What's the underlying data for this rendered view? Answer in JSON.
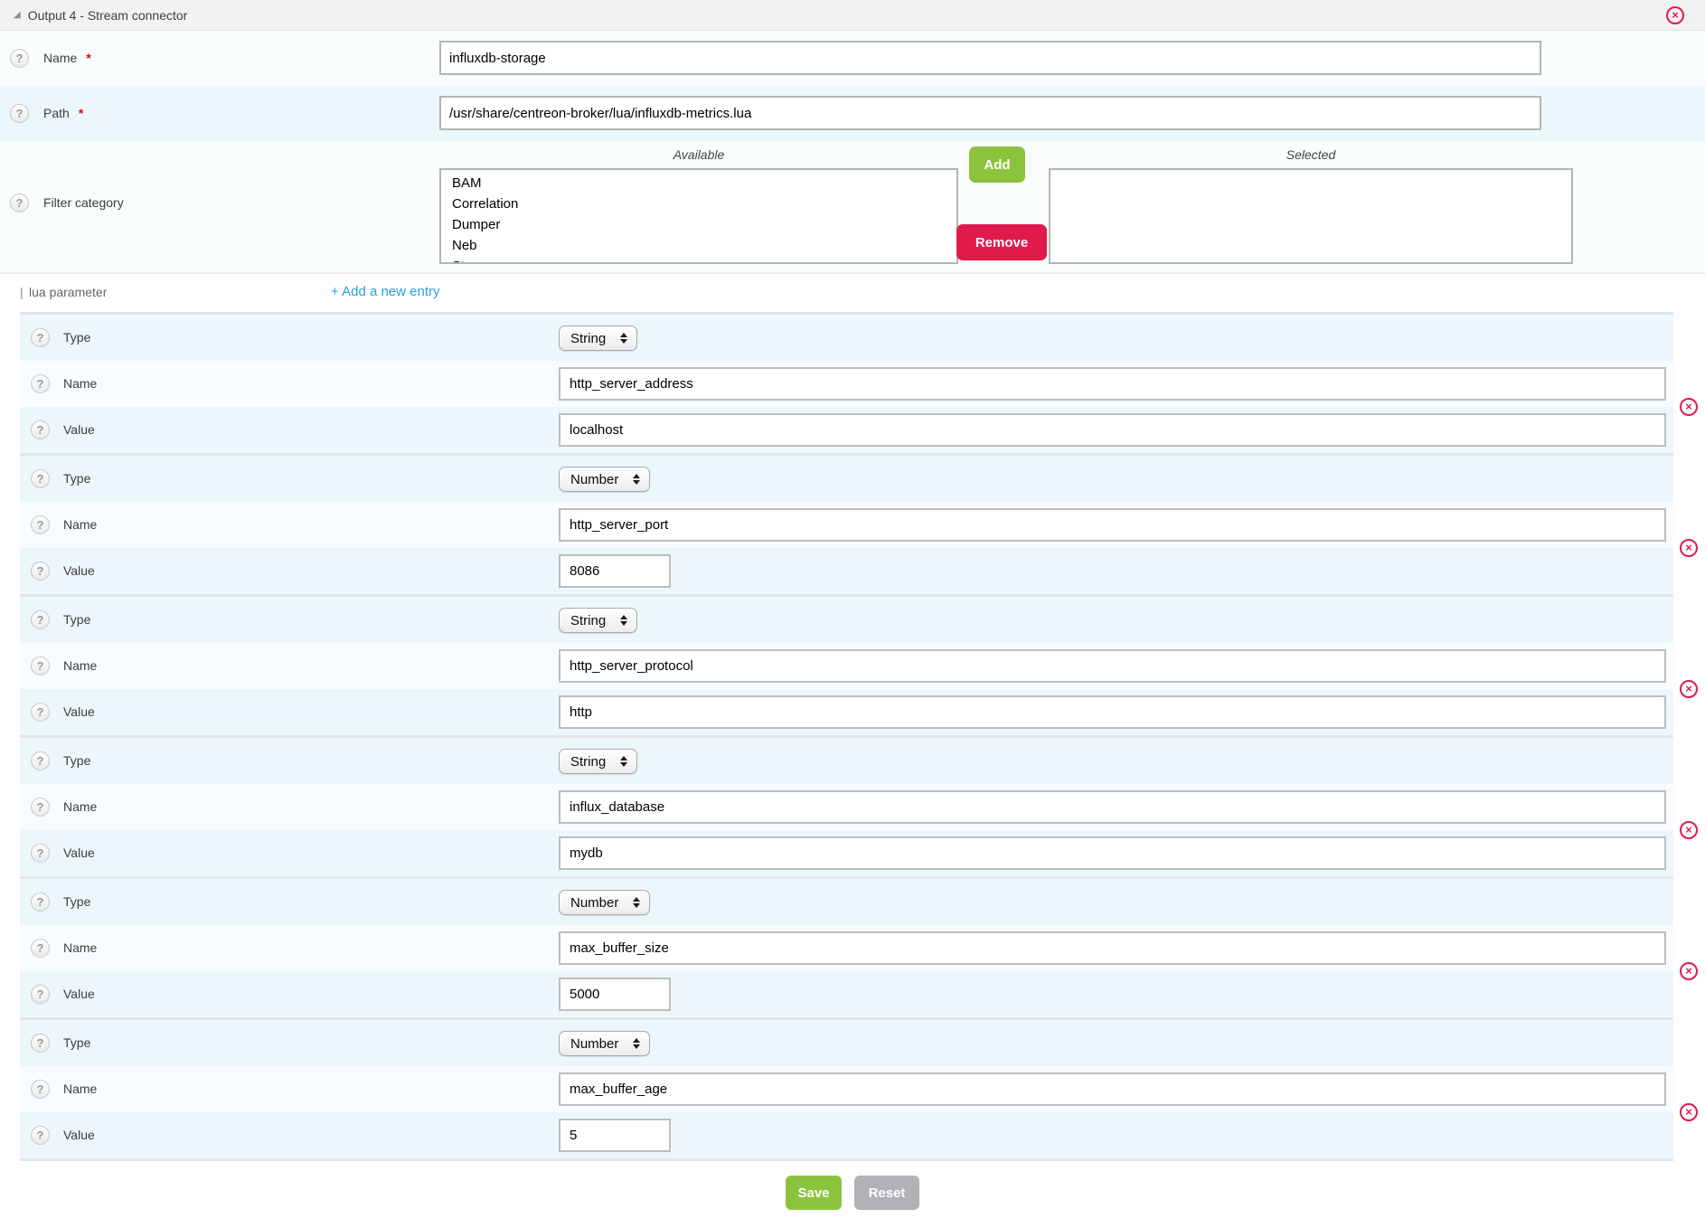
{
  "icons": {
    "collapse": "◢",
    "close": "×",
    "help": "?"
  },
  "colors": {
    "accent_green": "#8cc33d",
    "accent_red": "#e11a4c",
    "link_blue": "#2b9fd8",
    "row_light": "#f9fdfe",
    "row_dark": "#ecf7fc"
  },
  "header": {
    "title": "Output 4 - Stream connector"
  },
  "fields": {
    "required_marker": "*",
    "name": {
      "label": "Name",
      "value": "influxdb-storage"
    },
    "path": {
      "label": "Path",
      "value": "/usr/share/centreon-broker/lua/influxdb-metrics.lua"
    },
    "filter_category": {
      "label": "Filter category",
      "available_label": "Available",
      "selected_label": "Selected",
      "available_options": [
        "BAM",
        "Correlation",
        "Dumper",
        "Neb",
        "Storage"
      ],
      "selected_options": [],
      "add_label": "Add",
      "remove_label": "Remove"
    }
  },
  "lua_parameters": {
    "section_prefix": "|",
    "section_label": "lua parameter",
    "add_entry_label": "+ Add a new entry",
    "row_labels": {
      "type": "Type",
      "name": "Name",
      "value": "Value"
    },
    "entries": [
      {
        "type": "String",
        "name": "http_server_address",
        "value": "localhost",
        "value_size": "long"
      },
      {
        "type": "Number",
        "name": "http_server_port",
        "value": "8086",
        "value_size": "short"
      },
      {
        "type": "String",
        "name": "http_server_protocol",
        "value": "http",
        "value_size": "long"
      },
      {
        "type": "String",
        "name": "influx_database",
        "value": "mydb",
        "value_size": "long"
      },
      {
        "type": "Number",
        "name": "max_buffer_size",
        "value": "5000",
        "value_size": "short"
      },
      {
        "type": "Number",
        "name": "max_buffer_age",
        "value": "5",
        "value_size": "short"
      }
    ]
  },
  "footer": {
    "save_label": "Save",
    "reset_label": "Reset"
  }
}
